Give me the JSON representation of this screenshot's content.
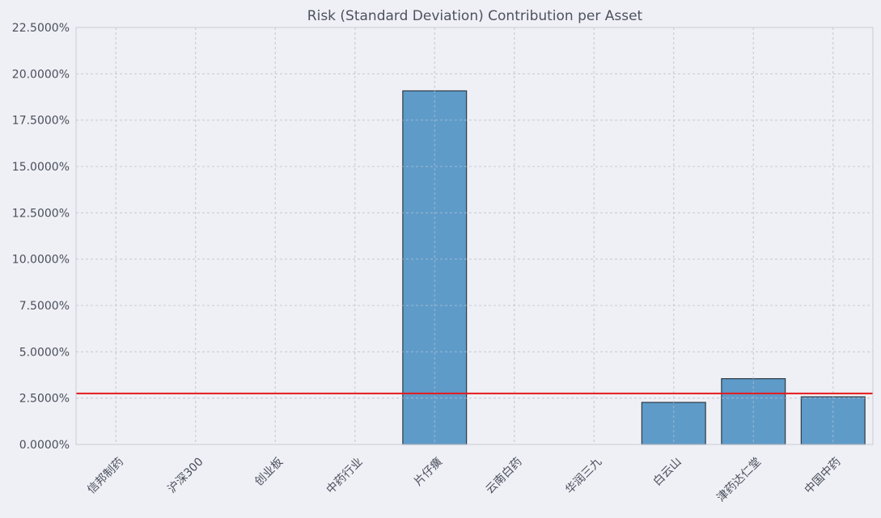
{
  "chart_data": {
    "type": "bar",
    "title": "Risk (Standard Deviation) Contribution per Asset",
    "xlabel": "",
    "ylabel": "",
    "categories": [
      "信邦制药",
      "沪深300",
      "创业板",
      "中药行业",
      "片仔癀",
      "云南白药",
      "华润三九",
      "白云山",
      "津药达仁堂",
      "中国中药"
    ],
    "values": [
      0.0,
      0.0,
      0.0,
      0.0,
      19.08,
      0.0,
      0.0,
      2.27,
      3.55,
      2.57
    ],
    "ylim": [
      0,
      22.5
    ],
    "yticks": [
      0,
      2.5,
      5,
      7.5,
      10,
      12.5,
      15,
      17.5,
      20,
      22.5
    ],
    "ytick_labels": [
      "0.0000%",
      "2.5000%",
      "5.0000%",
      "7.5000%",
      "10.0000%",
      "12.5000%",
      "15.0000%",
      "17.5000%",
      "20.0000%",
      "22.5000%"
    ],
    "reference_line": {
      "value": 2.75,
      "color": "#e41a1c"
    },
    "bar_color": "#5e9bc9",
    "bar_edge_color": "#2f3a44",
    "grid": true
  }
}
